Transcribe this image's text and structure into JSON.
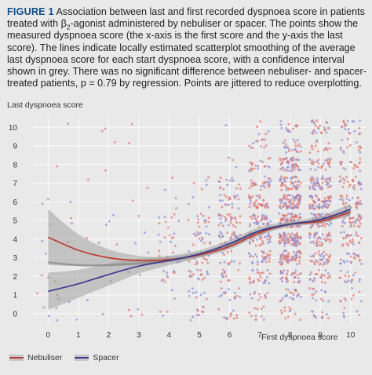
{
  "caption": {
    "figure_label": "FIGURE 1",
    "text_before_sub": "Association between last and first recorded dyspnoea score in patients treated with β",
    "subscript": "2",
    "text_after_sub": "-agonist administered by nebuliser or spacer. The points show the measured dyspnoea score (the x-axis is the first score and the y-axis the last score). The lines indicate locally estimated scatterplot smoothing of the average last dyspnoea score for each start dyspnoea score, with a confidence interval shown in grey. There was no significant difference between nebuliser- and spacer-treated patients, p = 0.79 by regression. Points are jittered to reduce overplotting."
  },
  "chart_data": {
    "type": "scatter",
    "xlabel": "First dyspnoea score",
    "ylabel": "Last dyspnoea score",
    "xlim": [
      -0.5,
      10.5
    ],
    "ylim": [
      -0.6,
      10.6
    ],
    "x_ticks": [
      "0",
      "1",
      "2",
      "3",
      "4",
      "5",
      "6",
      "7",
      "8",
      "9",
      "10"
    ],
    "y_ticks": [
      "0",
      "1",
      "2",
      "3",
      "4",
      "5",
      "6",
      "7",
      "8",
      "9",
      "10"
    ],
    "grid": true,
    "legend_position": "bottom-left",
    "jittered": true,
    "series": [
      {
        "name": "Nebuliser",
        "color": "#c0392b",
        "point_color": "#e2766b",
        "loess": {
          "x": [
            0,
            1,
            2,
            3,
            4,
            5,
            6,
            7,
            8,
            9,
            10
          ],
          "y": [
            4.1,
            3.4,
            3.0,
            2.85,
            2.9,
            3.15,
            3.6,
            4.35,
            4.8,
            4.95,
            5.45
          ]
        },
        "ci_lower": [
          2.6,
          2.55,
          2.55,
          2.6,
          2.75,
          3.0,
          3.45,
          4.2,
          4.7,
          4.85,
          5.25
        ],
        "ci_upper": [
          5.6,
          4.25,
          3.45,
          3.1,
          3.05,
          3.3,
          3.75,
          4.5,
          4.9,
          5.05,
          5.65
        ]
      },
      {
        "name": "Spacer",
        "color": "#3c3a8f",
        "point_color": "#8d8ad6",
        "loess": {
          "x": [
            0,
            1,
            2,
            3,
            4,
            5,
            6,
            7,
            8,
            9,
            10
          ],
          "y": [
            1.2,
            1.6,
            2.1,
            2.55,
            2.85,
            3.2,
            3.75,
            4.45,
            4.8,
            5.05,
            5.6
          ]
        },
        "ci_lower": [
          0.2,
          0.85,
          1.5,
          2.15,
          2.6,
          3.0,
          3.55,
          4.25,
          4.65,
          4.85,
          5.3
        ],
        "ci_upper": [
          2.2,
          2.35,
          2.7,
          2.95,
          3.1,
          3.4,
          3.95,
          4.65,
          4.95,
          5.25,
          5.9
        ]
      }
    ],
    "combined_loess": {
      "x": [
        0,
        1,
        2,
        3,
        4,
        5,
        6,
        7,
        8,
        9,
        10
      ],
      "y": [
        2.75,
        2.6,
        2.6,
        2.7,
        2.85,
        3.15,
        3.65,
        4.4,
        4.8,
        5.0,
        5.5
      ]
    },
    "points_per_x": [
      16,
      10,
      12,
      14,
      45,
      90,
      150,
      260,
      500,
      360,
      220
    ]
  },
  "colors": {
    "background": "#e9e9ea",
    "ci_band": "#9c9c9c",
    "grid": "#ffffff",
    "accent": "#0d4f8a"
  }
}
